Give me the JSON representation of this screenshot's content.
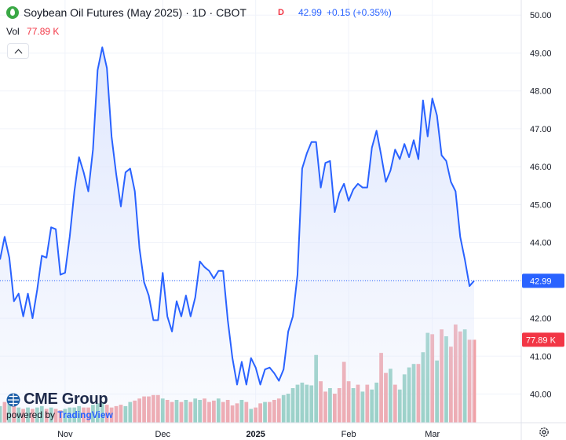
{
  "header": {
    "title": "Soybean Oil Futures (May 2025) · 1D · CBOT",
    "d_badge": "D",
    "price": "42.99",
    "change": "+0.15 (+0.35%)",
    "vol_label": "Vol",
    "vol_value": "77.89 K"
  },
  "logo": {
    "brand": "CME Group",
    "powered_prefix": "powered by",
    "powered_brand": "TradingView"
  },
  "icons": {
    "symbol": "soybean-oil-drop-icon",
    "collapse": "chevron-up-icon",
    "settings": "gear-icon"
  },
  "colors": {
    "line": "#2962ff",
    "area": "#dfe7fd",
    "vol_up": "#8fcdbf",
    "vol_down": "#f0a1a6",
    "price_badge": "#2962ff",
    "vol_badge": "#f23645"
  },
  "chart_data": {
    "type": "line",
    "title": "Soybean Oil Futures (May 2025) · 1D · CBOT",
    "y_ticks": [
      "50.00",
      "49.00",
      "48.00",
      "47.00",
      "46.00",
      "45.00",
      "44.00",
      "43.00",
      "42.00",
      "41.00",
      "40.00"
    ],
    "ylim": [
      39.7,
      50.15
    ],
    "x_ticks": [
      {
        "label": "Nov",
        "index": 14
      },
      {
        "label": "Dec",
        "index": 35
      },
      {
        "label": "2025",
        "index": 55
      },
      {
        "label": "Feb",
        "index": 75
      },
      {
        "label": "Mar",
        "index": 93
      }
    ],
    "last_price_label": "42.99",
    "last_volume_label": "77.89 K",
    "series": [
      {
        "values": [
          43.55,
          44.15,
          43.6,
          42.45,
          42.65,
          42.05,
          42.65,
          42.0,
          42.75,
          43.65,
          43.6,
          44.4,
          44.35,
          43.15,
          43.2,
          44.15,
          45.35,
          46.25,
          45.85,
          45.35,
          46.45,
          48.55,
          49.15,
          48.6,
          46.8,
          45.8,
          44.95,
          45.85,
          45.95,
          45.35,
          43.85,
          42.95,
          42.6,
          41.95,
          41.95,
          43.2,
          42.05,
          41.65,
          42.45,
          42.05,
          42.6,
          42.05,
          42.55,
          43.5,
          43.35,
          43.25,
          43.05,
          43.25,
          43.25,
          41.95,
          40.95,
          40.25,
          40.85,
          40.25,
          40.95,
          40.7,
          40.25,
          40.65,
          40.7,
          40.55,
          40.35,
          40.65,
          41.65,
          42.05,
          43.15,
          45.95,
          46.35,
          46.65,
          46.65,
          45.45,
          46.1,
          46.15,
          44.8,
          45.3,
          45.55,
          45.1,
          45.4,
          45.55,
          45.45,
          45.45,
          46.5,
          46.95,
          46.3,
          45.6,
          45.9,
          46.45,
          46.2,
          46.6,
          46.25,
          46.7,
          46.2,
          47.75,
          46.8,
          47.8,
          47.35,
          46.3,
          46.15,
          45.6,
          45.35,
          44.15,
          43.55,
          42.85,
          42.99
        ]
      }
    ],
    "volume": [
      {
        "v": 0.24,
        "up": true
      },
      {
        "v": 0.3,
        "up": false
      },
      {
        "v": 0.28,
        "up": true
      },
      {
        "v": 0.25,
        "up": false
      },
      {
        "v": 0.22,
        "up": true
      },
      {
        "v": 0.2,
        "up": false
      },
      {
        "v": 0.22,
        "up": true
      },
      {
        "v": 0.2,
        "up": false
      },
      {
        "v": 0.22,
        "up": true
      },
      {
        "v": 0.24,
        "up": true
      },
      {
        "v": 0.2,
        "up": false
      },
      {
        "v": 0.22,
        "up": true
      },
      {
        "v": 0.2,
        "up": false
      },
      {
        "v": 0.18,
        "up": false
      },
      {
        "v": 0.2,
        "up": true
      },
      {
        "v": 0.22,
        "up": true
      },
      {
        "v": 0.22,
        "up": true
      },
      {
        "v": 0.24,
        "up": true
      },
      {
        "v": 0.22,
        "up": false
      },
      {
        "v": 0.22,
        "up": false
      },
      {
        "v": 0.26,
        "up": true
      },
      {
        "v": 0.28,
        "up": true
      },
      {
        "v": 0.3,
        "up": true
      },
      {
        "v": 0.26,
        "up": false
      },
      {
        "v": 0.22,
        "up": false
      },
      {
        "v": 0.24,
        "up": false
      },
      {
        "v": 0.26,
        "up": false
      },
      {
        "v": 0.24,
        "up": true
      },
      {
        "v": 0.3,
        "up": true
      },
      {
        "v": 0.32,
        "up": false
      },
      {
        "v": 0.35,
        "up": false
      },
      {
        "v": 0.38,
        "up": false
      },
      {
        "v": 0.38,
        "up": false
      },
      {
        "v": 0.4,
        "up": false
      },
      {
        "v": 0.4,
        "up": false
      },
      {
        "v": 0.35,
        "up": true
      },
      {
        "v": 0.33,
        "up": false
      },
      {
        "v": 0.3,
        "up": false
      },
      {
        "v": 0.33,
        "up": true
      },
      {
        "v": 0.3,
        "up": false
      },
      {
        "v": 0.33,
        "up": true
      },
      {
        "v": 0.3,
        "up": false
      },
      {
        "v": 0.35,
        "up": true
      },
      {
        "v": 0.33,
        "up": true
      },
      {
        "v": 0.35,
        "up": false
      },
      {
        "v": 0.3,
        "up": false
      },
      {
        "v": 0.32,
        "up": false
      },
      {
        "v": 0.35,
        "up": true
      },
      {
        "v": 0.3,
        "up": false
      },
      {
        "v": 0.33,
        "up": false
      },
      {
        "v": 0.25,
        "up": false
      },
      {
        "v": 0.28,
        "up": false
      },
      {
        "v": 0.33,
        "up": true
      },
      {
        "v": 0.3,
        "up": false
      },
      {
        "v": 0.2,
        "up": true
      },
      {
        "v": 0.22,
        "up": false
      },
      {
        "v": 0.28,
        "up": false
      },
      {
        "v": 0.3,
        "up": true
      },
      {
        "v": 0.3,
        "up": false
      },
      {
        "v": 0.33,
        "up": false
      },
      {
        "v": 0.35,
        "up": false
      },
      {
        "v": 0.4,
        "up": true
      },
      {
        "v": 0.42,
        "up": true
      },
      {
        "v": 0.5,
        "up": true
      },
      {
        "v": 0.55,
        "up": true
      },
      {
        "v": 0.58,
        "up": true
      },
      {
        "v": 0.55,
        "up": true
      },
      {
        "v": 0.54,
        "up": true
      },
      {
        "v": 0.98,
        "up": true
      },
      {
        "v": 0.6,
        "up": false
      },
      {
        "v": 0.45,
        "up": false
      },
      {
        "v": 0.5,
        "up": true
      },
      {
        "v": 0.42,
        "up": false
      },
      {
        "v": 0.5,
        "up": false
      },
      {
        "v": 0.88,
        "up": false
      },
      {
        "v": 0.6,
        "up": false
      },
      {
        "v": 0.5,
        "up": true
      },
      {
        "v": 0.55,
        "up": false
      },
      {
        "v": 0.45,
        "up": true
      },
      {
        "v": 0.55,
        "up": false
      },
      {
        "v": 0.48,
        "up": true
      },
      {
        "v": 0.58,
        "up": true
      },
      {
        "v": 1.01,
        "up": false
      },
      {
        "v": 0.72,
        "up": false
      },
      {
        "v": 0.78,
        "up": true
      },
      {
        "v": 0.55,
        "up": false
      },
      {
        "v": 0.48,
        "up": true
      },
      {
        "v": 0.7,
        "up": true
      },
      {
        "v": 0.8,
        "up": true
      },
      {
        "v": 0.85,
        "up": true
      },
      {
        "v": 0.85,
        "up": false
      },
      {
        "v": 1.02,
        "up": true
      },
      {
        "v": 1.3,
        "up": true
      },
      {
        "v": 1.28,
        "up": false
      },
      {
        "v": 0.9,
        "up": true
      },
      {
        "v": 1.35,
        "up": false
      },
      {
        "v": 1.25,
        "up": true
      },
      {
        "v": 1.1,
        "up": false
      },
      {
        "v": 1.42,
        "up": false
      },
      {
        "v": 1.32,
        "up": false
      },
      {
        "v": 1.35,
        "up": true
      },
      {
        "v": 1.2,
        "up": false
      },
      {
        "v": 1.2,
        "up": false
      }
    ]
  }
}
